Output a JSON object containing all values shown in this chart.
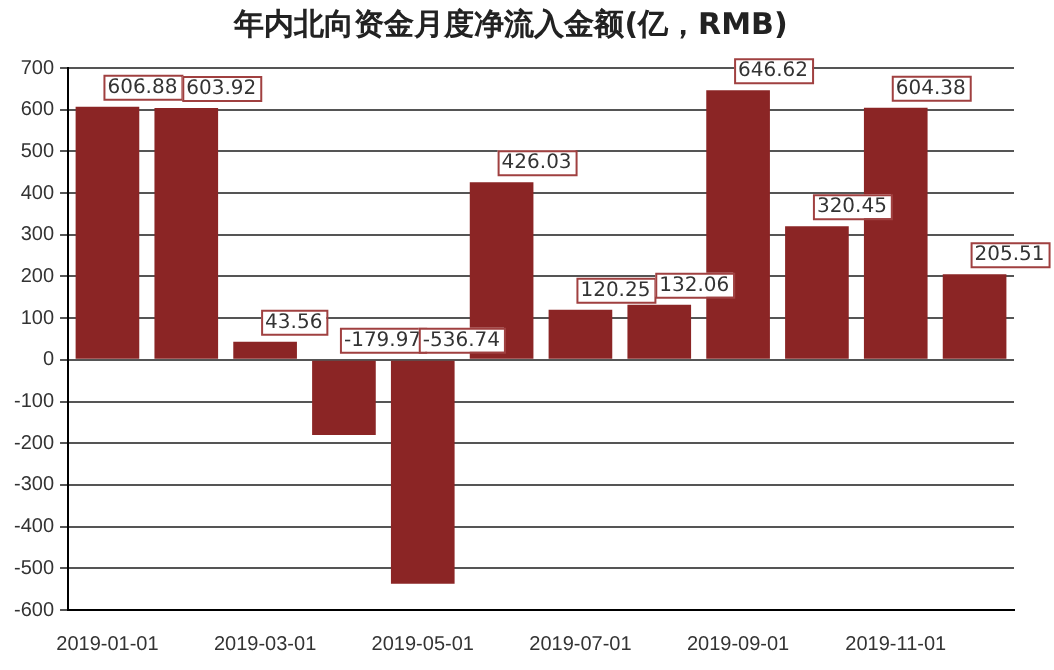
{
  "chart_data": {
    "type": "bar",
    "title": "年内北向资金月度净流入金额(亿，RMB)",
    "categories": [
      "2019-01-01",
      null,
      "2019-03-01",
      null,
      "2019-05-01",
      null,
      "2019-07-01",
      null,
      "2019-09-01",
      null,
      "2019-11-01",
      null
    ],
    "values": [
      606.88,
      603.92,
      43.56,
      -179.97,
      -536.74,
      426.03,
      120.25,
      132.06,
      646.62,
      320.45,
      604.38,
      205.51
    ],
    "color": "#8b2525",
    "ylim": [
      -600,
      700
    ],
    "yticks": [
      -600,
      -500,
      -400,
      -300,
      -200,
      -100,
      0,
      100,
      200,
      300,
      400,
      500,
      600,
      700
    ],
    "grid": "y",
    "data_labels": true
  }
}
